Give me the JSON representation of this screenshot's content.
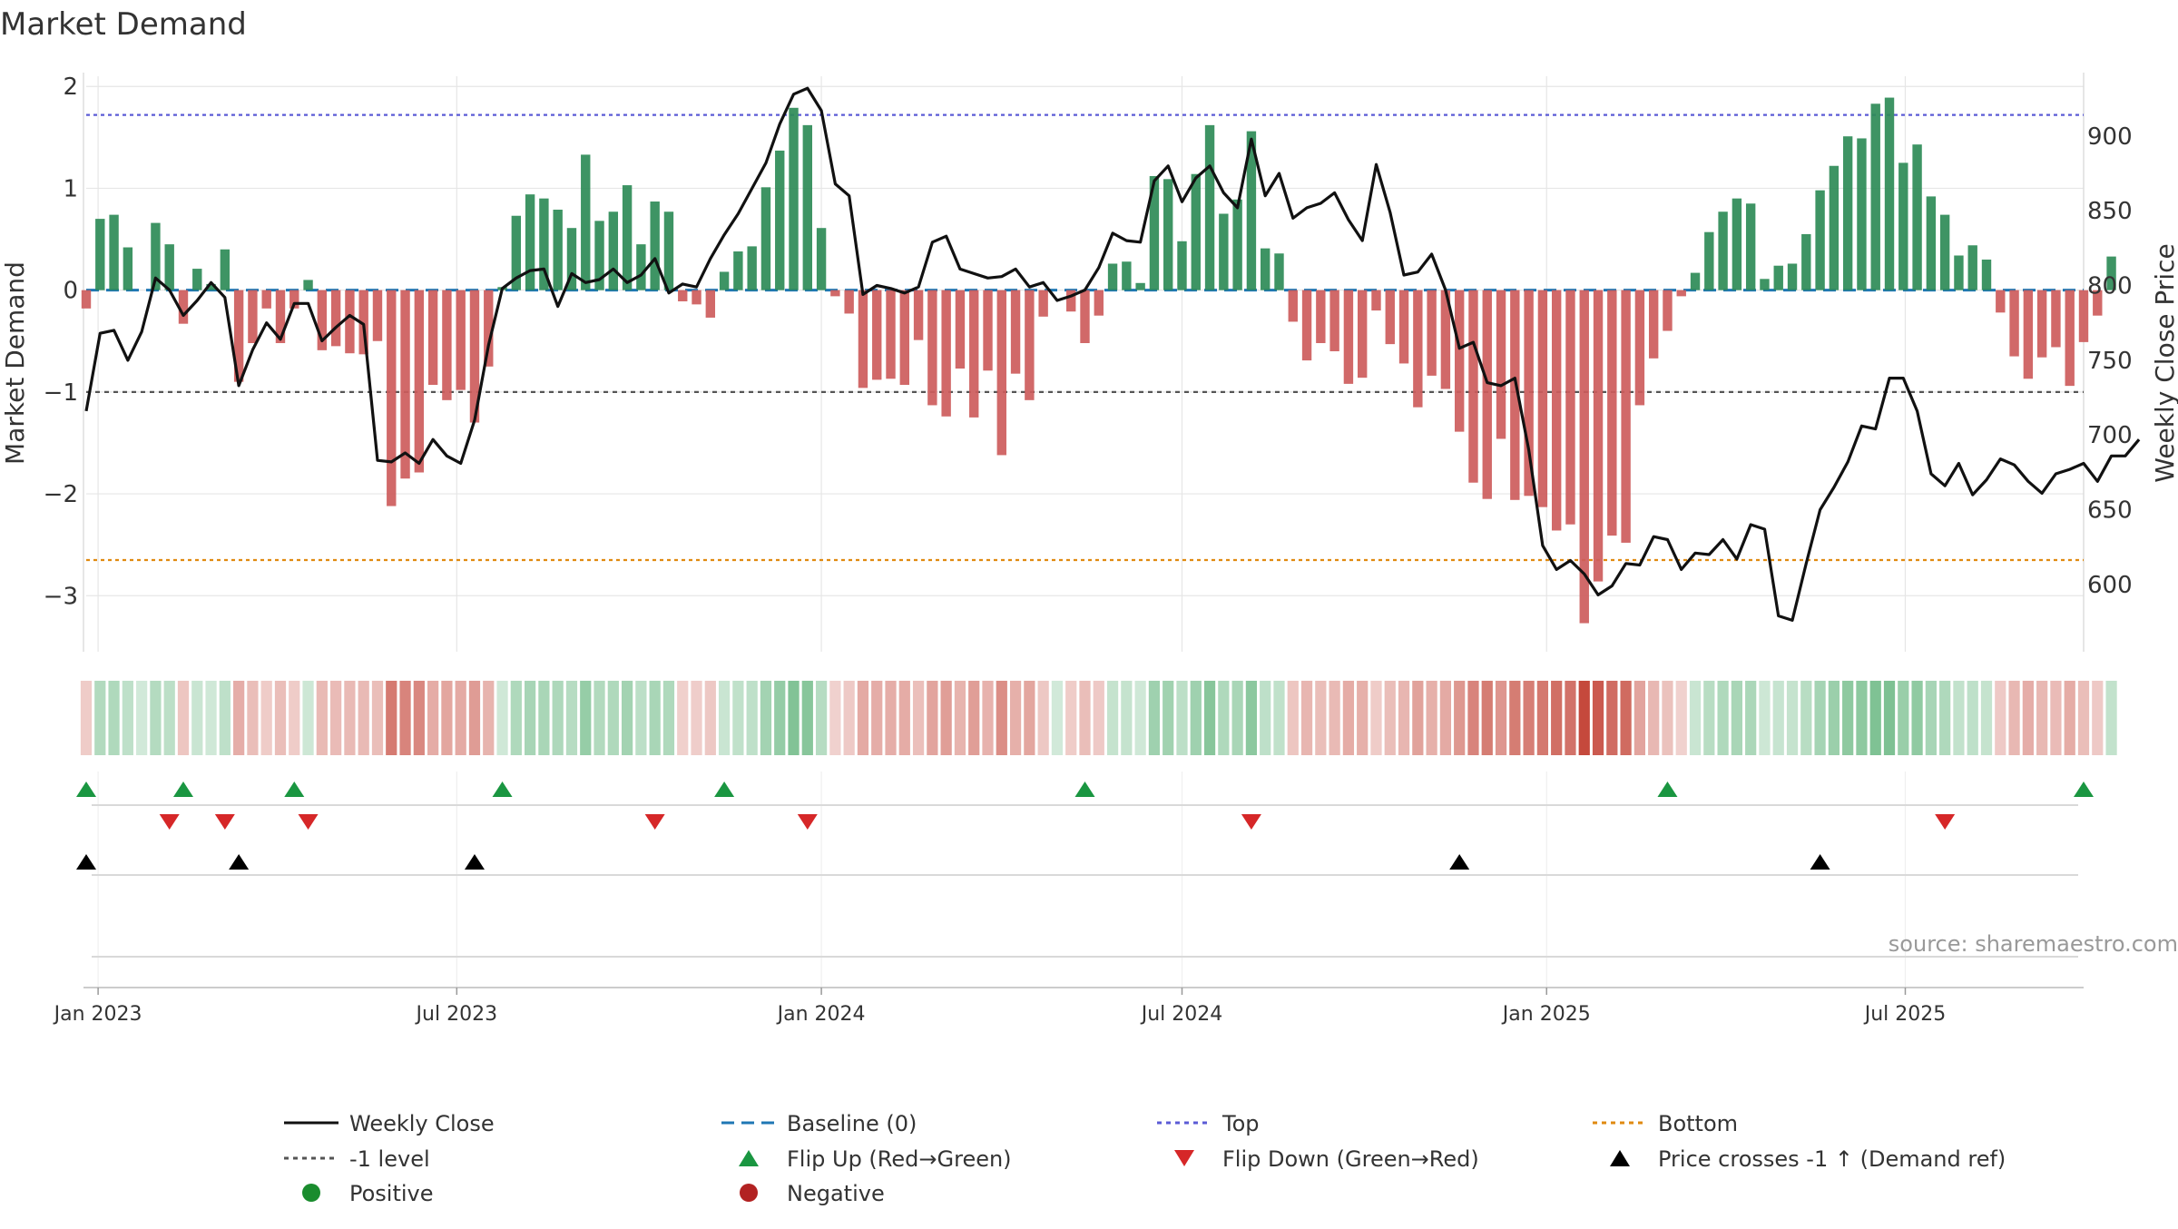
{
  "chart_data": {
    "type": "bar",
    "title": "Market Demand",
    "ylabel_left": "Market Demand",
    "ylabel_right": "Weekly Close Price",
    "source": "source: sharemaestro.com",
    "ylim_left": [
      -3.55,
      2.1
    ],
    "ylim_right": [
      555,
      940
    ],
    "yticks_left": [
      2,
      1,
      0,
      -1,
      -2,
      -3
    ],
    "yticks_left_labels": [
      "2",
      "1",
      "0",
      "−1",
      "−2",
      "−3"
    ],
    "yticks_right": [
      900,
      850,
      800,
      750,
      700,
      650,
      600
    ],
    "yticks_right_labels": [
      "900",
      "850",
      "800",
      "750",
      "700",
      "650",
      "600"
    ],
    "x_start": "2022-12-26",
    "x_end": "2025-09-29",
    "x_ticks": [
      {
        "date": "2023-01-01",
        "label": "Jan 2023"
      },
      {
        "date": "2023-07-01",
        "label": "Jul 2023"
      },
      {
        "date": "2024-01-01",
        "label": "Jan 2024"
      },
      {
        "date": "2024-07-01",
        "label": "Jul 2024"
      },
      {
        "date": "2025-01-01",
        "label": "Jan 2025"
      },
      {
        "date": "2025-07-01",
        "label": "Jul 2025"
      }
    ],
    "first_week": "2022-12-26",
    "demand": [
      -0.18,
      0.7,
      0.74,
      0.42,
      0.0,
      0.66,
      0.45,
      -0.33,
      0.21,
      0.06,
      0.4,
      -0.9,
      -0.52,
      -0.18,
      -0.52,
      -0.18,
      0.1,
      -0.59,
      -0.55,
      -0.62,
      -0.63,
      -0.5,
      -2.12,
      -1.85,
      -1.79,
      -0.93,
      -1.08,
      -0.98,
      -1.3,
      -0.75,
      0.03,
      0.73,
      0.94,
      0.9,
      0.79,
      0.61,
      1.33,
      0.68,
      0.77,
      1.03,
      0.45,
      0.87,
      0.77,
      -0.11,
      -0.14,
      -0.27,
      0.18,
      0.38,
      0.43,
      1.01,
      1.37,
      1.79,
      1.62,
      0.61,
      -0.06,
      -0.23,
      -0.96,
      -0.88,
      -0.87,
      -0.93,
      -0.49,
      -1.13,
      -1.24,
      -0.77,
      -1.25,
      -0.79,
      -1.62,
      -0.82,
      -1.08,
      -0.26,
      0.0,
      -0.21,
      -0.52,
      -0.25,
      0.26,
      0.28,
      0.07,
      1.12,
      1.09,
      0.48,
      1.14,
      1.62,
      0.75,
      0.89,
      1.56,
      0.41,
      0.36,
      -0.31,
      -0.69,
      -0.52,
      -0.6,
      -0.92,
      -0.86,
      -0.2,
      -0.53,
      -0.72,
      -1.15,
      -0.84,
      -0.97,
      -1.39,
      -1.89,
      -2.05,
      -1.46,
      -2.06,
      -2.02,
      -2.13,
      -2.36,
      -2.3,
      -3.27,
      -2.86,
      -2.41,
      -2.48,
      -1.13,
      -0.67,
      -0.4,
      -0.06,
      0.17,
      0.57,
      0.77,
      0.9,
      0.85,
      0.11,
      0.24,
      0.26,
      0.55,
      0.98,
      1.22,
      1.51,
      1.49,
      1.83,
      1.89,
      1.25,
      1.43,
      0.92,
      0.74,
      0.34,
      0.44,
      0.3,
      -0.22,
      -0.65,
      -0.87,
      -0.66,
      -0.56,
      -0.94,
      -0.51,
      -0.25,
      0.33
    ],
    "weekly_close": [
      716,
      768,
      770,
      750,
      769,
      805,
      797,
      780,
      790,
      802,
      792,
      733,
      757,
      775,
      764,
      788,
      788,
      763,
      772,
      780,
      774,
      683,
      682,
      688,
      681,
      697,
      686,
      681,
      710,
      760,
      798,
      805,
      810,
      811,
      786,
      808,
      802,
      804,
      811,
      802,
      807,
      818,
      795,
      801,
      799,
      818,
      834,
      848,
      865,
      882,
      908,
      928,
      932,
      917,
      868,
      860,
      794,
      800,
      798,
      795,
      799,
      829,
      833,
      811,
      808,
      805,
      806,
      811,
      799,
      802,
      790,
      793,
      797,
      812,
      835,
      830,
      829,
      870,
      880,
      856,
      872,
      880,
      862,
      852,
      898,
      860,
      875,
      845,
      852,
      855,
      862,
      844,
      830,
      881,
      849,
      807,
      809,
      821,
      797,
      758,
      762,
      735,
      733,
      738,
      690,
      626,
      610,
      616,
      607,
      593,
      599,
      614,
      613,
      632,
      630,
      610,
      621,
      620,
      630,
      617,
      640,
      637,
      579,
      576,
      614,
      650,
      665,
      682,
      706,
      704,
      738,
      738,
      716,
      674,
      666,
      681,
      660,
      670,
      684,
      680,
      669,
      661,
      674,
      677,
      681,
      669,
      686,
      686,
      697
    ],
    "reference_lines": [
      {
        "name": "Baseline (0)",
        "value": 0,
        "color": "#1f77b4"
      },
      {
        "name": "-1 level",
        "value": -1,
        "color": "#555555"
      },
      {
        "name": "Top",
        "value": 1.72,
        "color": "#5b5bd6"
      },
      {
        "name": "Bottom",
        "value": -2.65,
        "color": "#e08a10"
      }
    ],
    "flip_up_weeks": [
      0,
      7,
      15,
      30,
      46,
      72,
      114,
      144
    ],
    "flip_down_weeks": [
      6,
      10,
      16,
      41,
      52,
      84,
      134
    ],
    "price_cross_weeks": [
      0,
      11,
      28,
      99,
      125
    ],
    "colors": {
      "positive_bar": "#2e8b57",
      "negative_bar": "#cd5c5c",
      "price_line": "#111111",
      "flip_up": "#1a9641",
      "flip_down": "#d62728",
      "price_cross": "#000000",
      "positive_dot": "#1a8c2e",
      "negative_dot": "#b22222",
      "grid": "#e6e6e6"
    },
    "legend": [
      {
        "label": "Weekly Close",
        "symbol": "line-solid",
        "color": "#111111"
      },
      {
        "label": "Baseline (0)",
        "symbol": "line-dashed",
        "color": "#1f77b4"
      },
      {
        "label": "Top",
        "symbol": "line-dotted",
        "color": "#5b5bd6"
      },
      {
        "label": "Bottom",
        "symbol": "line-dotted",
        "color": "#e08a10"
      },
      {
        "label": "-1 level",
        "symbol": "line-dotted",
        "color": "#555555"
      },
      {
        "label": "Flip Up (Red→Green)",
        "symbol": "triangle-up",
        "color": "#1a9641"
      },
      {
        "label": "Flip Down (Green→Red)",
        "symbol": "triangle-down",
        "color": "#d62728"
      },
      {
        "label": "Price crosses -1 ↑ (Demand ref)",
        "symbol": "triangle-up",
        "color": "#000000"
      },
      {
        "label": "Positive",
        "symbol": "dot",
        "color": "#1a8c2e"
      },
      {
        "label": "Negative",
        "symbol": "dot",
        "color": "#b22222"
      }
    ]
  }
}
